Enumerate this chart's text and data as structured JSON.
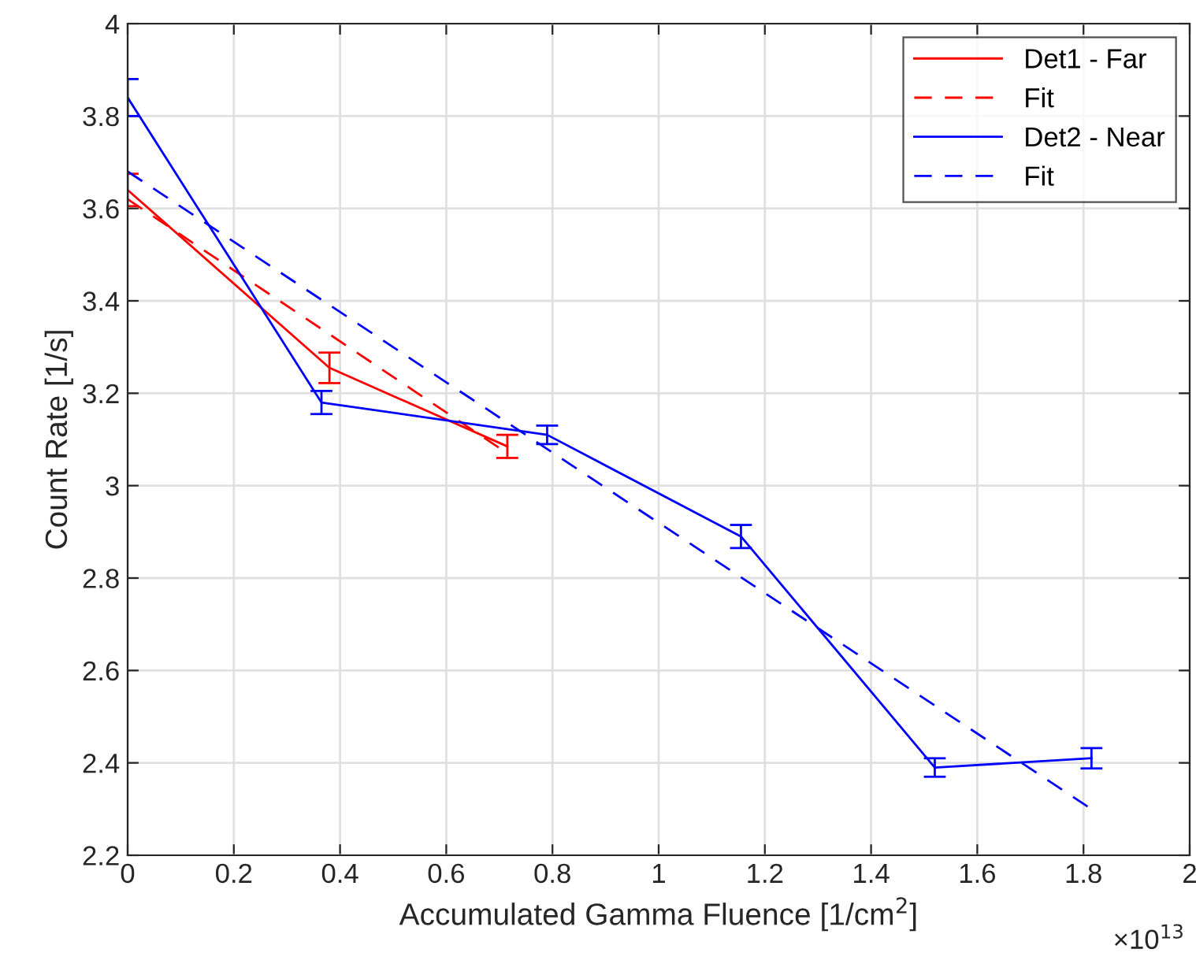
{
  "chart_data": {
    "type": "line",
    "xlabel": "Accumulated Gamma Fluence [1/cm$^{2}$]",
    "ylabel": "Count Rate [1/s]",
    "xlim": [
      0,
      2
    ],
    "xticks": [
      0,
      0.2,
      0.4,
      0.6,
      0.8,
      1,
      1.2,
      1.4,
      1.6,
      1.8,
      2
    ],
    "ylim": [
      2.2,
      4
    ],
    "yticks": [
      2.2,
      2.4,
      2.6,
      2.8,
      3,
      3.2,
      3.4,
      3.6,
      3.8,
      4
    ],
    "grid": true,
    "legend": "top right",
    "marker": "none",
    "annotations": [
      "×10$^{13}$"
    ],
    "series": [
      {
        "name": "Det1 - Far",
        "color": "#ff0000",
        "line_style": "solid",
        "x": [
          0,
          0.38,
          0.715
        ],
        "values": [
          3.64,
          3.255,
          3.085
        ],
        "errors": [
          0.035,
          0.033,
          0.025
        ]
      },
      {
        "name": "Fit",
        "color": "#ff0000",
        "line_style": "dashed",
        "x": [
          0,
          0.715
        ],
        "values": [
          3.62,
          3.07
        ]
      },
      {
        "name": "Det2 - Near",
        "color": "#0000ff",
        "line_style": "solid",
        "x": [
          0,
          0.365,
          0.79,
          1.155,
          1.52,
          1.815
        ],
        "values": [
          3.84,
          3.18,
          3.11,
          2.89,
          2.39,
          2.41
        ],
        "errors": [
          0.04,
          0.025,
          0.02,
          0.025,
          0.02,
          0.022
        ]
      },
      {
        "name": "Fit",
        "color": "#0000ff",
        "line_style": "dashed",
        "x": [
          0,
          1.815
        ],
        "values": [
          3.68,
          2.3
        ]
      }
    ]
  }
}
